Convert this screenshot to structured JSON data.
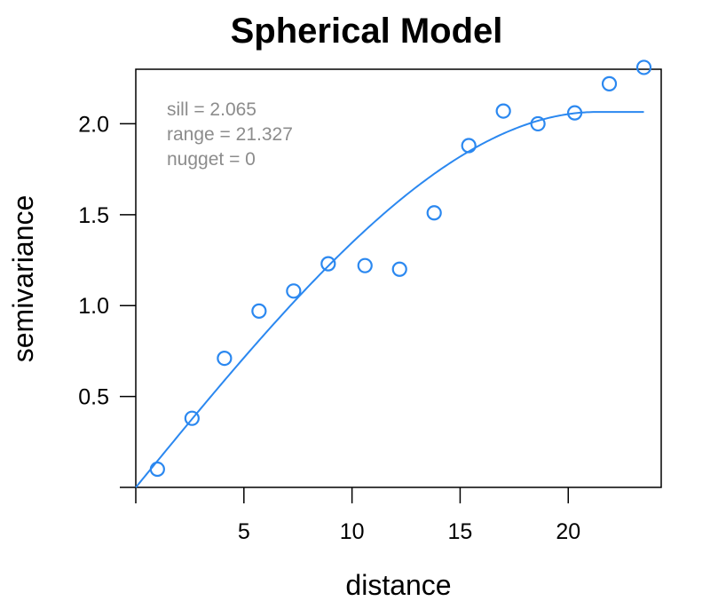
{
  "chart_data": {
    "type": "scatter",
    "title": "Spherical Model",
    "xlabel": "distance",
    "ylabel": "semivariance",
    "xlim": [
      0,
      24.3
    ],
    "ylim": [
      0,
      2.3
    ],
    "xticks": [
      5,
      10,
      15,
      20
    ],
    "yticks": [
      0.5,
      1.0,
      1.5,
      2.0
    ],
    "xtick_labels": [
      "5",
      "10",
      "15",
      "20"
    ],
    "ytick_labels": [
      "0.5",
      "1.0",
      "1.5",
      "2.0"
    ],
    "grid": false,
    "series": [
      {
        "values": [
          {
            "x": 1.0,
            "y": 0.1
          },
          {
            "x": 2.6,
            "y": 0.38
          },
          {
            "x": 4.1,
            "y": 0.71
          },
          {
            "x": 5.7,
            "y": 0.97
          },
          {
            "x": 7.3,
            "y": 1.08
          },
          {
            "x": 8.9,
            "y": 1.23
          },
          {
            "x": 10.6,
            "y": 1.22
          },
          {
            "x": 12.2,
            "y": 1.2
          },
          {
            "x": 13.8,
            "y": 1.51
          },
          {
            "x": 15.4,
            "y": 1.88
          },
          {
            "x": 17.0,
            "y": 2.07
          },
          {
            "x": 18.6,
            "y": 2.0
          },
          {
            "x": 20.3,
            "y": 2.06
          },
          {
            "x": 21.9,
            "y": 2.22
          },
          {
            "x": 23.5,
            "y": 2.31
          }
        ]
      }
    ],
    "model": {
      "type": "spherical",
      "sill": 2.065,
      "range": 21.327,
      "nugget": 0,
      "x_max": 23.5
    },
    "annotations": [
      "sill = 2.065",
      "range = 21.327",
      "nugget = 0"
    ],
    "colors": {
      "series": "#2b88f0",
      "annotation": "#8c8c8c",
      "axis": "#000000"
    }
  }
}
